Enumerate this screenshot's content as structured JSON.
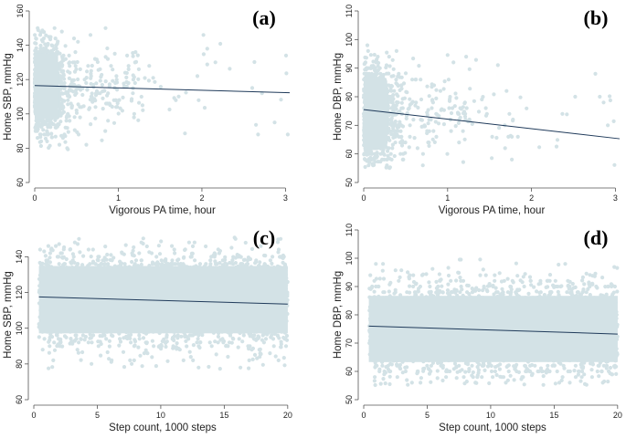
{
  "colors": {
    "scatter": "#d3e2e6",
    "fit": "#1f3a5a",
    "axis": "#555555"
  },
  "chart_data": [
    {
      "id": "a",
      "type": "scatter",
      "panel_label": "(a)",
      "xlabel": "Vigorous PA time, hour",
      "ylabel": "Home SBP, mmHg",
      "xlim": [
        0,
        3.05
      ],
      "ylim": [
        60,
        160
      ],
      "xticks": [
        0,
        1,
        2,
        3
      ],
      "xtick_labels": [
        "0",
        "1",
        "2",
        "3"
      ],
      "yticks": [
        60,
        80,
        100,
        120,
        140,
        160
      ],
      "ytick_labels": [
        "60",
        "80",
        "100",
        "120",
        "140",
        "160"
      ],
      "fit_line": {
        "x": [
          0,
          3.05
        ],
        "y": [
          116.5,
          112.3
        ]
      },
      "scatter": {
        "x_range": [
          0,
          3.05
        ],
        "y_range": [
          77,
          152
        ],
        "center": 116,
        "note": "dense band near 0–0.5 h, sparse points extend to 3 h"
      }
    },
    {
      "id": "b",
      "type": "scatter",
      "panel_label": "(b)",
      "xlabel": "Vigorous PA time, hour",
      "ylabel": "Home DBP, mmHg",
      "xlim": [
        0,
        3.05
      ],
      "ylim": [
        50,
        110
      ],
      "xticks": [
        0,
        1,
        2,
        3
      ],
      "xtick_labels": [
        "0",
        "1",
        "2",
        "3"
      ],
      "yticks": [
        50,
        60,
        70,
        80,
        90,
        100,
        110
      ],
      "ytick_labels": [
        "50",
        "60",
        "70",
        "80",
        "90",
        "100",
        "110"
      ],
      "fit_line": {
        "x": [
          0,
          3.05
        ],
        "y": [
          75.5,
          65.3
        ]
      },
      "scatter": {
        "x_range": [
          0,
          3.05
        ],
        "y_range": [
          55,
          101
        ],
        "center": 74,
        "note": "dense band near 0–0.5 h, sparse points extend to 3 h"
      }
    },
    {
      "id": "c",
      "type": "scatter",
      "panel_label": "(c)",
      "xlabel": "Step count, 1000 steps",
      "ylabel": "Home SBP, mmHg",
      "xlim": [
        0,
        20.3
      ],
      "ylim": [
        60,
        155
      ],
      "xticks": [
        0,
        5,
        10,
        15,
        20
      ],
      "xtick_labels": [
        "0",
        "5",
        "10",
        "15",
        "20"
      ],
      "yticks": [
        60,
        80,
        100,
        120,
        140
      ],
      "ytick_labels": [
        "60",
        "80",
        "100",
        "120",
        "140"
      ],
      "fit_line": {
        "x": [
          0.4,
          20
        ],
        "y": [
          117.5,
          113.5
        ]
      },
      "scatter": {
        "x_range": [
          0.4,
          20
        ],
        "y_range": [
          77,
          151
        ],
        "center": 116,
        "note": "dense cloud across full step range"
      }
    },
    {
      "id": "d",
      "type": "scatter",
      "panel_label": "(d)",
      "xlabel": "Step count, 1000 steps",
      "ylabel": "Home DBP, mmHg",
      "xlim": [
        0,
        20.3
      ],
      "ylim": [
        50,
        110
      ],
      "xticks": [
        0,
        5,
        10,
        15,
        20
      ],
      "xtick_labels": [
        "0",
        "5",
        "10",
        "15",
        "20"
      ],
      "yticks": [
        50,
        60,
        70,
        80,
        90,
        100,
        110
      ],
      "ytick_labels": [
        "50",
        "60",
        "70",
        "80",
        "90",
        "100",
        "110"
      ],
      "fit_line": {
        "x": [
          0.4,
          20
        ],
        "y": [
          76.0,
          73.2
        ]
      },
      "scatter": {
        "x_range": [
          0.4,
          20
        ],
        "y_range": [
          55,
          101
        ],
        "center": 75,
        "note": "dense cloud across full step range"
      }
    }
  ]
}
